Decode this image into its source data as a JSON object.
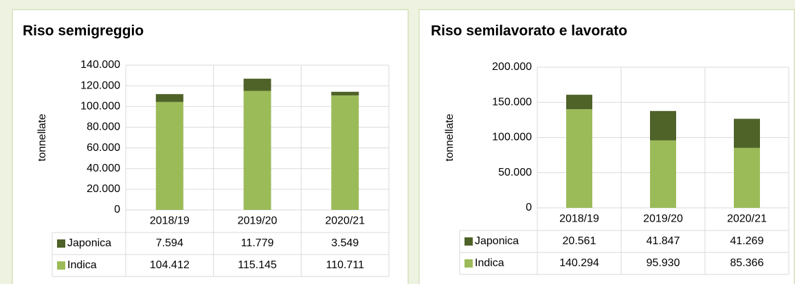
{
  "chart_data": [
    {
      "type": "bar",
      "stacked": true,
      "title": "Riso semigreggio",
      "y_label": "tonnellate",
      "categories": [
        "2018/19",
        "2019/20",
        "2020/21"
      ],
      "series": [
        {
          "name": "Japonica",
          "color": "#4f6228",
          "values": [
            7594,
            11779,
            3549
          ],
          "value_labels": [
            "7.594",
            "11.779",
            "3.549"
          ]
        },
        {
          "name": "Indica",
          "color": "#9bbb59",
          "values": [
            104412,
            115145,
            110711
          ],
          "value_labels": [
            "104.412",
            "115.145",
            "110.711"
          ]
        }
      ],
      "ylim": [
        0,
        140000
      ],
      "yticks": [
        0,
        {
          "value": 20000,
          "label": "20.000"
        },
        {
          "value": 40000,
          "label": "40.000"
        },
        {
          "value": 60000,
          "label": "60.000"
        },
        {
          "value": 80000,
          "label": "80.000"
        },
        {
          "value": 100000,
          "label": "100.000"
        },
        {
          "value": 120000,
          "label": "120.000"
        },
        {
          "value": 140000,
          "label": "140.000"
        }
      ],
      "grid": true
    },
    {
      "type": "bar",
      "stacked": true,
      "title": "Riso semilavorato e lavorato",
      "y_label": "tonnellate",
      "categories": [
        "2018/19",
        "2019/20",
        "2020/21"
      ],
      "series": [
        {
          "name": "Japonica",
          "color": "#4f6228",
          "values": [
            20561,
            41847,
            41269
          ],
          "value_labels": [
            "20.561",
            "41.847",
            "41.269"
          ]
        },
        {
          "name": "Indica",
          "color": "#9bbb59",
          "values": [
            140294,
            95930,
            85366
          ],
          "value_labels": [
            "140.294",
            "95.930",
            "85.366"
          ]
        }
      ],
      "ylim": [
        0,
        200000
      ],
      "yticks": [
        0,
        {
          "value": 50000,
          "label": "50.000"
        },
        {
          "value": 100000,
          "label": "100.000"
        },
        {
          "value": 150000,
          "label": "150.000"
        },
        {
          "value": 200000,
          "label": "200.000"
        }
      ],
      "grid": true
    }
  ]
}
